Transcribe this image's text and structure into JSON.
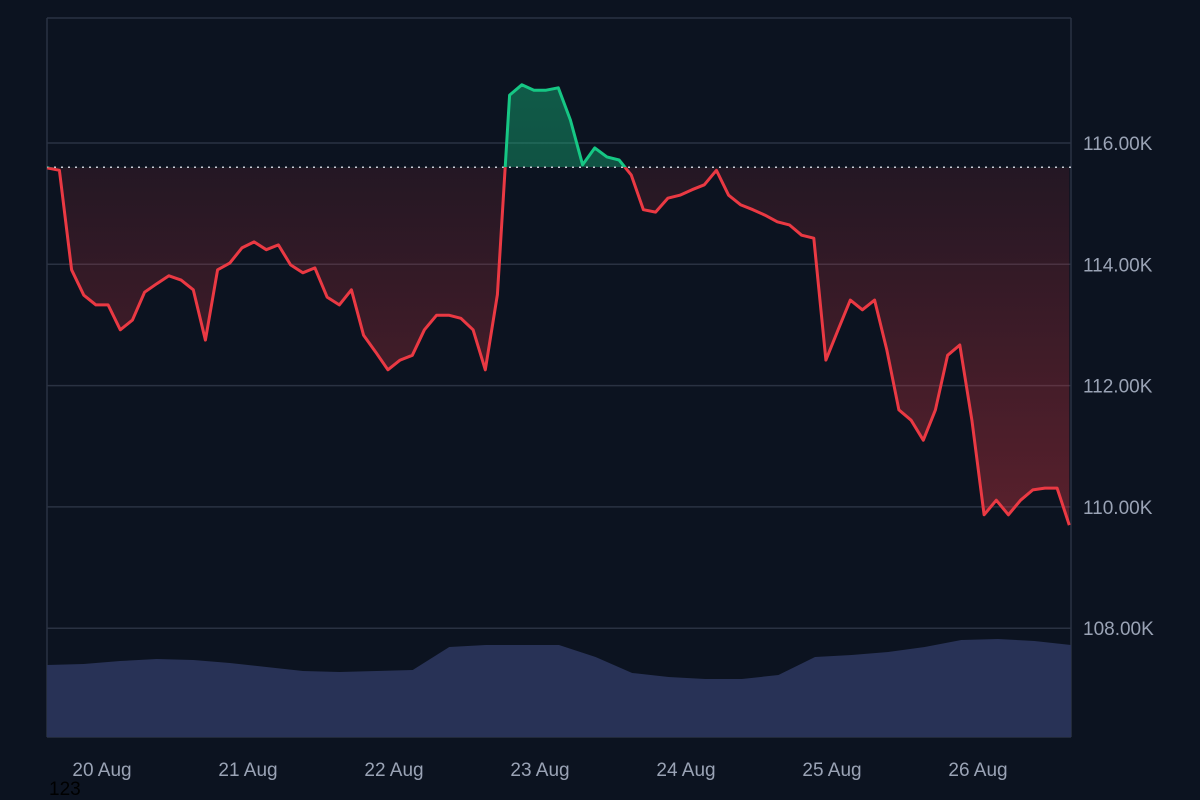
{
  "chart_data": {
    "type": "line",
    "title": "",
    "xlabel": "",
    "ylabel": "",
    "x_unit": "hours since 20 Aug 00:00",
    "x_start": -9,
    "x_step": 2,
    "price": [
      115.59,
      115.55,
      113.91,
      113.49,
      113.33,
      113.33,
      112.92,
      113.08,
      113.54,
      113.68,
      113.81,
      113.74,
      113.58,
      112.75,
      113.91,
      114.02,
      114.27,
      114.37,
      114.24,
      114.32,
      113.99,
      113.86,
      113.94,
      113.46,
      113.33,
      113.58,
      112.83,
      112.55,
      112.26,
      112.42,
      112.5,
      112.92,
      113.16,
      113.16,
      113.11,
      112.92,
      112.26,
      113.5,
      116.79,
      116.96,
      116.87,
      116.87,
      116.91,
      116.38,
      115.64,
      115.92,
      115.77,
      115.72,
      115.47,
      114.9,
      114.86,
      115.09,
      115.14,
      115.23,
      115.31,
      115.55,
      115.14,
      114.98,
      114.9,
      114.81,
      114.7,
      114.65,
      114.48,
      114.43,
      112.42,
      112.92,
      113.41,
      113.25,
      113.41,
      112.59,
      111.6,
      111.43,
      111.1,
      111.6,
      112.5,
      112.67,
      111.43,
      109.87,
      110.11,
      109.87,
      110.11,
      110.28,
      110.31,
      110.31,
      109.7
    ],
    "baseline": 115.6,
    "volume_x_step": 14,
    "volume_relative": [
      72,
      73,
      76,
      78,
      77,
      74,
      70,
      66,
      65,
      66,
      67,
      90,
      92,
      92,
      92,
      80,
      64,
      60,
      58,
      58,
      62,
      80,
      82,
      85,
      90,
      97,
      98,
      96,
      92
    ],
    "ylim": [
      106.2,
      118.0
    ],
    "xlim": [
      -9,
      159.3
    ],
    "y_ticks": [
      {
        "v": 108,
        "label": "108.00K"
      },
      {
        "v": 110,
        "label": "110.00K"
      },
      {
        "v": 112,
        "label": "112.00K"
      },
      {
        "v": 114,
        "label": "114.00K"
      },
      {
        "v": 116,
        "label": "116.00K"
      }
    ],
    "x_ticks": [
      {
        "v": 0,
        "label": "20 Aug"
      },
      {
        "v": 24,
        "label": "21 Aug"
      },
      {
        "v": 48,
        "label": "22 Aug"
      },
      {
        "v": 72,
        "label": "23 Aug"
      },
      {
        "v": 96,
        "label": "24 Aug"
      },
      {
        "v": 120,
        "label": "25 Aug"
      },
      {
        "v": 144,
        "label": "26 Aug"
      }
    ],
    "grid": true,
    "colors": {
      "up": "#16c784",
      "down": "#ea3943",
      "volume": "#283256",
      "grid": "#2a3242",
      "background": "#0c1320"
    }
  },
  "corner_label": "123"
}
